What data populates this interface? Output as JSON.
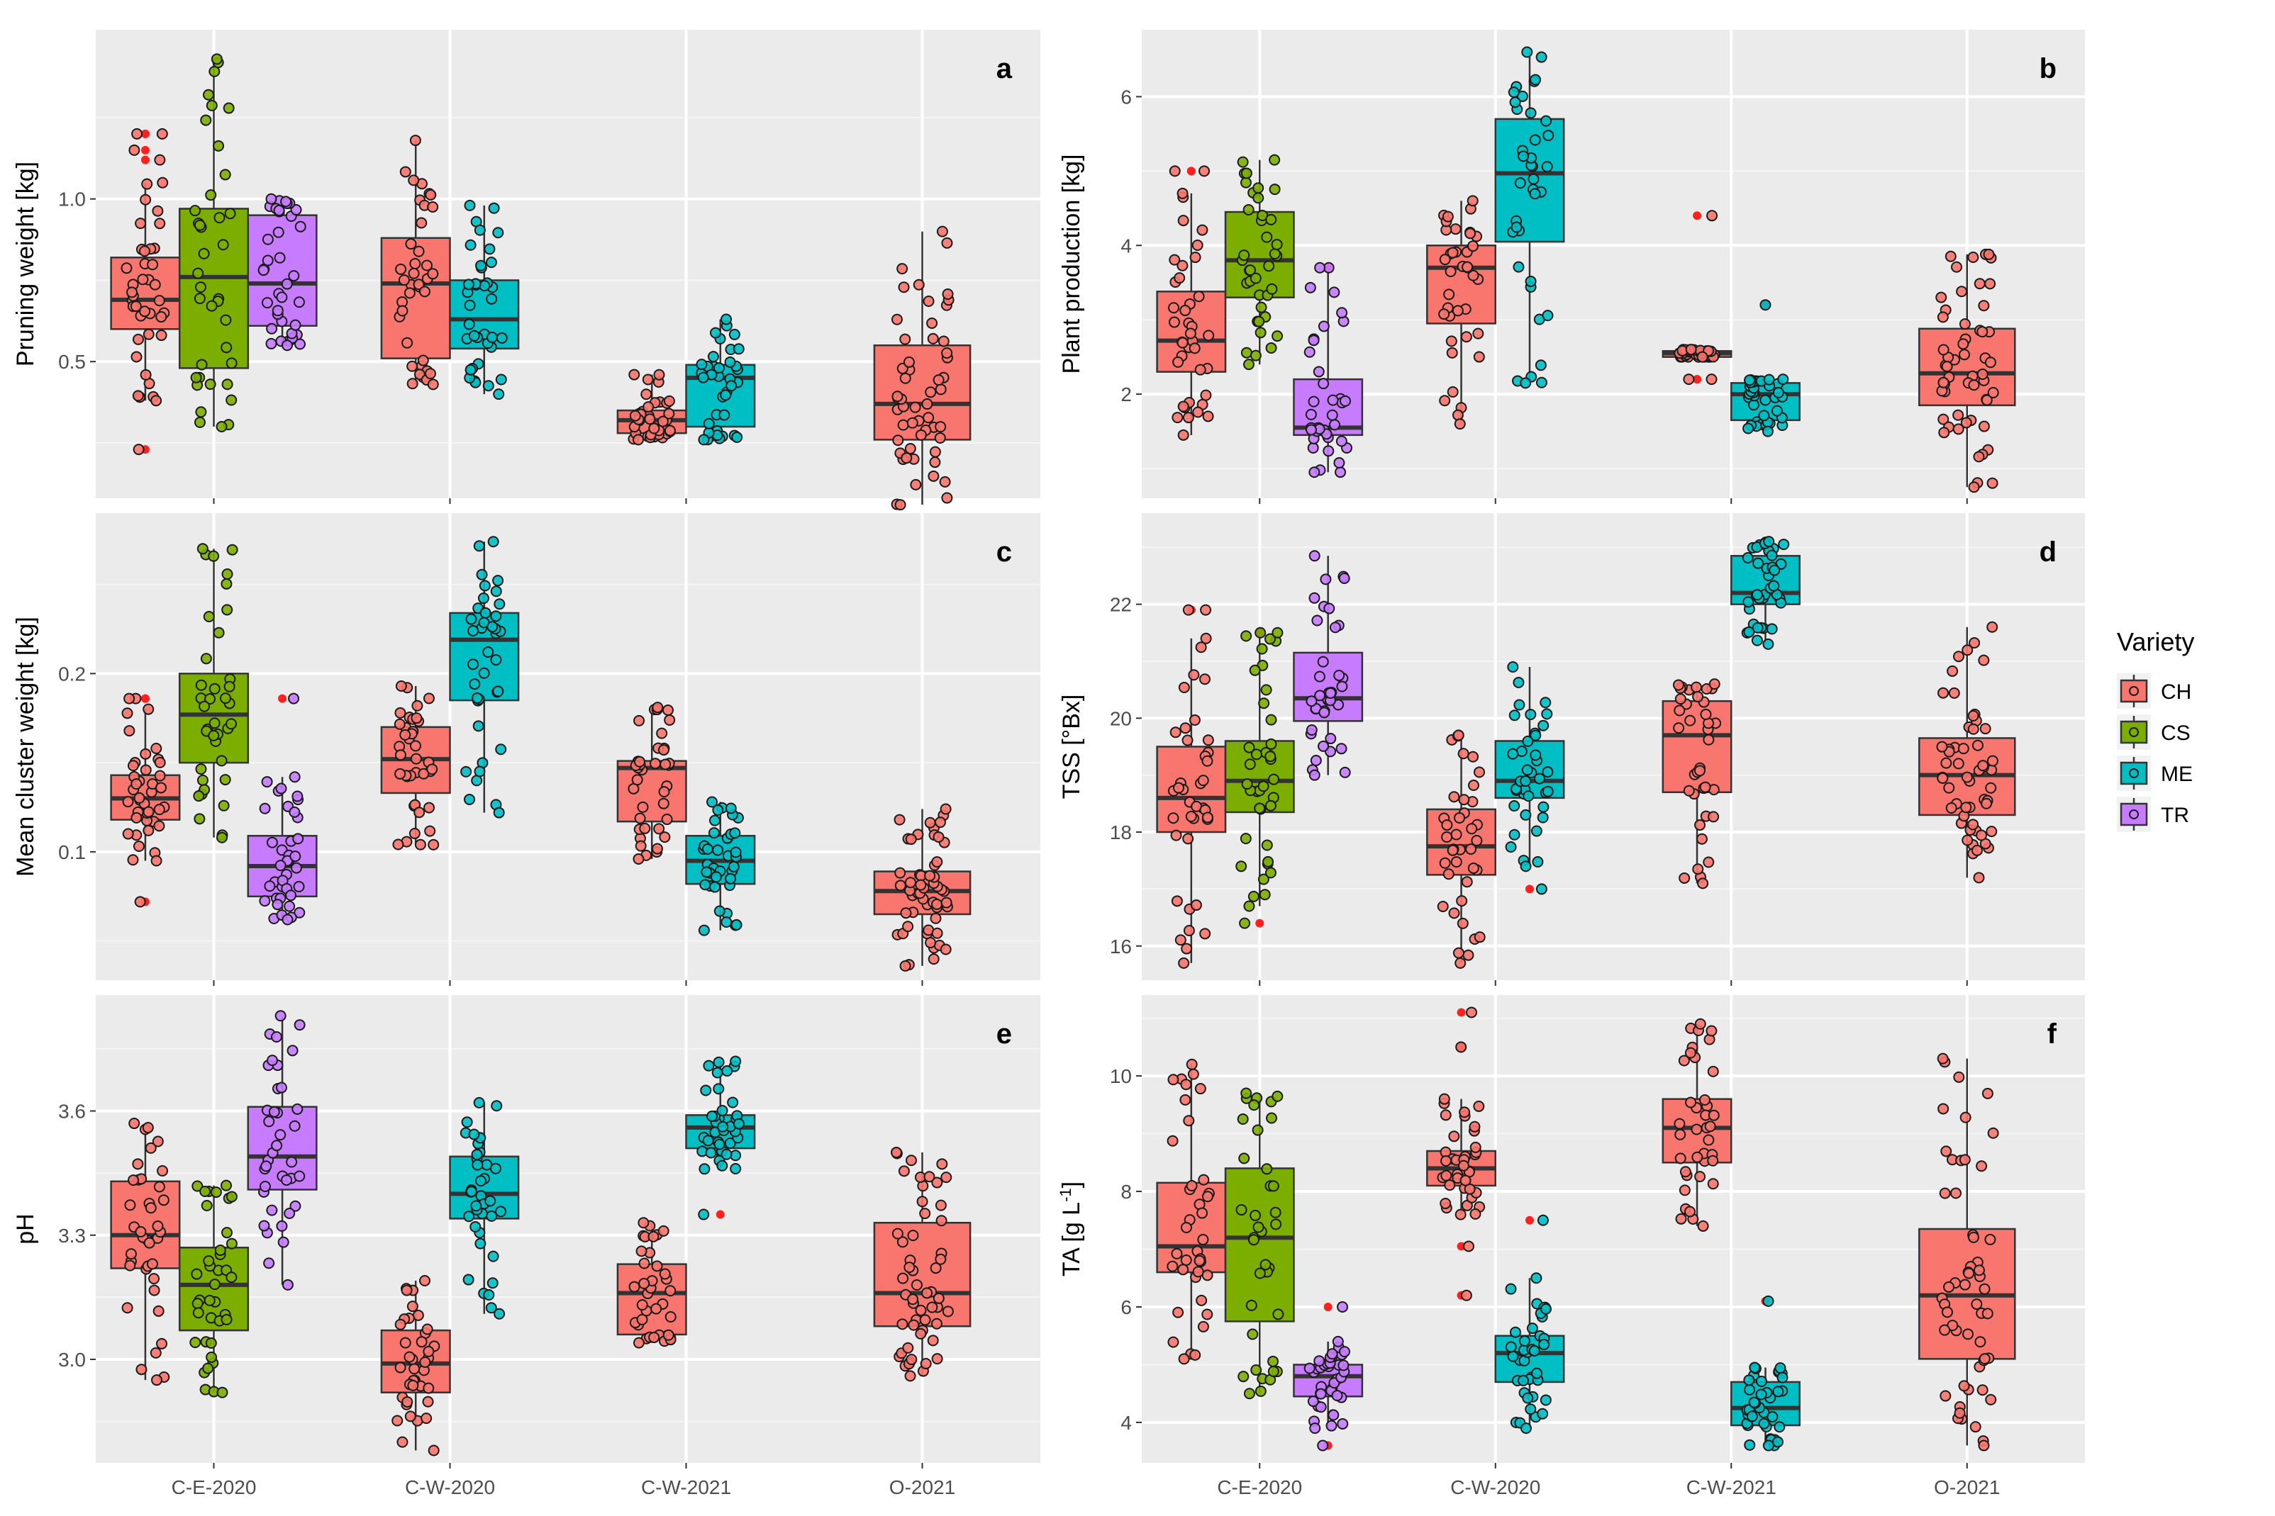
{
  "figure": {
    "x_categories": [
      "C-E-2020",
      "C-W-2020",
      "C-W-2021",
      "O-2021"
    ],
    "varieties": [
      "CH",
      "CS",
      "ME",
      "TR"
    ],
    "colors": {
      "CH": "#F8766D",
      "CS": "#7CAE00",
      "ME": "#00BFC4",
      "TR": "#C77CFF"
    },
    "legend": {
      "title": "Variety",
      "items": [
        "CH",
        "CS",
        "ME",
        "TR"
      ]
    }
  },
  "chart_data": [
    {
      "type": "box",
      "letter": "a",
      "ylabel_parts": [
        {
          "t": "Pruning weight [kg]"
        }
      ],
      "ylim": [
        0.08,
        1.52
      ],
      "yticks": [
        0.5,
        1.0
      ],
      "ytick_labels": [
        "0.5",
        "1.0"
      ],
      "groups": [
        {
          "site": "C-E-2020",
          "variety": "CH",
          "min": 0.38,
          "q1": 0.6,
          "median": 0.69,
          "q3": 0.82,
          "max": 1.05,
          "outliers": [
            0.23,
            1.12,
            1.15,
            1.2,
            1.2
          ]
        },
        {
          "site": "C-E-2020",
          "variety": "CS",
          "min": 0.3,
          "q1": 0.48,
          "median": 0.76,
          "q3": 0.97,
          "max": 1.43,
          "outliers": []
        },
        {
          "site": "C-E-2020",
          "variety": "TR",
          "min": 0.55,
          "q1": 0.61,
          "median": 0.74,
          "q3": 0.95,
          "max": 1.0,
          "outliers": []
        },
        {
          "site": "C-W-2020",
          "variety": "CH",
          "min": 0.43,
          "q1": 0.51,
          "median": 0.74,
          "q3": 0.88,
          "max": 1.18,
          "outliers": []
        },
        {
          "site": "C-W-2020",
          "variety": "ME",
          "min": 0.4,
          "q1": 0.54,
          "median": 0.63,
          "q3": 0.75,
          "max": 0.98,
          "outliers": []
        },
        {
          "site": "C-W-2021",
          "variety": "CH",
          "min": 0.26,
          "q1": 0.28,
          "median": 0.32,
          "q3": 0.35,
          "max": 0.46,
          "outliers": []
        },
        {
          "site": "C-W-2021",
          "variety": "ME",
          "min": 0.26,
          "q1": 0.3,
          "median": 0.45,
          "q3": 0.49,
          "max": 0.63,
          "outliers": []
        },
        {
          "site": "O-2021",
          "variety": "CH",
          "min": 0.06,
          "q1": 0.26,
          "median": 0.37,
          "q3": 0.55,
          "max": 0.9,
          "outliers": []
        }
      ]
    },
    {
      "type": "box",
      "letter": "b",
      "ylabel_parts": [
        {
          "t": "Plant production [kg]"
        }
      ],
      "ylim": [
        0.6,
        6.9
      ],
      "yticks": [
        2,
        4,
        6
      ],
      "ytick_labels": [
        "2",
        "4",
        "6"
      ],
      "groups": [
        {
          "site": "C-E-2020",
          "variety": "CH",
          "min": 1.45,
          "q1": 2.3,
          "median": 2.72,
          "q3": 3.38,
          "max": 4.7,
          "outliers": [
            5.0,
            5.0
          ]
        },
        {
          "site": "C-E-2020",
          "variety": "CS",
          "min": 2.4,
          "q1": 3.3,
          "median": 3.8,
          "q3": 4.45,
          "max": 5.15,
          "outliers": []
        },
        {
          "site": "C-E-2020",
          "variety": "TR",
          "min": 0.95,
          "q1": 1.45,
          "median": 1.55,
          "q3": 2.2,
          "max": 3.7,
          "outliers": [
            3.7
          ]
        },
        {
          "site": "C-W-2020",
          "variety": "CH",
          "min": 1.6,
          "q1": 2.95,
          "median": 3.7,
          "q3": 4.0,
          "max": 4.6,
          "outliers": []
        },
        {
          "site": "C-W-2020",
          "variety": "ME",
          "min": 2.15,
          "q1": 4.05,
          "median": 4.97,
          "q3": 5.7,
          "max": 6.6,
          "outliers": []
        },
        {
          "site": "C-W-2021",
          "variety": "CH",
          "min": 2.5,
          "q1": 2.5,
          "median": 2.55,
          "q3": 2.58,
          "max": 2.6,
          "outliers": [
            2.2,
            2.2,
            4.4
          ]
        },
        {
          "site": "C-W-2021",
          "variety": "ME",
          "min": 1.5,
          "q1": 1.65,
          "median": 2.0,
          "q3": 2.15,
          "max": 2.2,
          "outliers": [
            3.2
          ]
        },
        {
          "site": "O-2021",
          "variety": "CH",
          "min": 0.75,
          "q1": 1.85,
          "median": 2.28,
          "q3": 2.88,
          "max": 3.88,
          "outliers": []
        }
      ]
    },
    {
      "type": "box",
      "letter": "c",
      "ylabel_parts": [
        {
          "t": "Mean cluster weight [kg]"
        }
      ],
      "ylim": [
        0.028,
        0.29
      ],
      "yticks": [
        0.1,
        0.2
      ],
      "ytick_labels": [
        "0.1",
        "0.2"
      ],
      "groups": [
        {
          "site": "C-E-2020",
          "variety": "CH",
          "min": 0.095,
          "q1": 0.118,
          "median": 0.13,
          "q3": 0.143,
          "max": 0.18,
          "outliers": [
            0.072,
            0.186,
            0.186
          ]
        },
        {
          "site": "C-E-2020",
          "variety": "CS",
          "min": 0.108,
          "q1": 0.15,
          "median": 0.177,
          "q3": 0.2,
          "max": 0.27,
          "outliers": []
        },
        {
          "site": "C-E-2020",
          "variety": "TR",
          "min": 0.062,
          "q1": 0.075,
          "median": 0.092,
          "q3": 0.109,
          "max": 0.142,
          "outliers": [
            0.186
          ]
        },
        {
          "site": "C-W-2020",
          "variety": "CH",
          "min": 0.104,
          "q1": 0.133,
          "median": 0.152,
          "q3": 0.17,
          "max": 0.193,
          "outliers": []
        },
        {
          "site": "C-W-2020",
          "variety": "ME",
          "min": 0.122,
          "q1": 0.185,
          "median": 0.219,
          "q3": 0.234,
          "max": 0.274,
          "outliers": []
        },
        {
          "site": "C-W-2021",
          "variety": "CH",
          "min": 0.096,
          "q1": 0.117,
          "median": 0.147,
          "q3": 0.151,
          "max": 0.181,
          "outliers": []
        },
        {
          "site": "C-W-2021",
          "variety": "ME",
          "min": 0.056,
          "q1": 0.082,
          "median": 0.095,
          "q3": 0.109,
          "max": 0.128,
          "outliers": []
        },
        {
          "site": "O-2021",
          "variety": "CH",
          "min": 0.036,
          "q1": 0.065,
          "median": 0.078,
          "q3": 0.089,
          "max": 0.124,
          "outliers": []
        }
      ]
    },
    {
      "type": "box",
      "letter": "d",
      "ylabel_parts": [
        {
          "t": "TSS [°Bx]"
        }
      ],
      "ylim": [
        15.4,
        23.6
      ],
      "yticks": [
        16,
        18,
        20,
        22
      ],
      "ytick_labels": [
        "16",
        "18",
        "20",
        "22"
      ],
      "groups": [
        {
          "site": "C-E-2020",
          "variety": "CH",
          "min": 15.7,
          "q1": 18.0,
          "median": 18.6,
          "q3": 19.5,
          "max": 21.4,
          "outliers": [
            21.9,
            21.9
          ]
        },
        {
          "site": "C-E-2020",
          "variety": "CS",
          "min": 16.7,
          "q1": 18.35,
          "median": 18.9,
          "q3": 19.6,
          "max": 21.5,
          "outliers": [
            16.4,
            21.5
          ]
        },
        {
          "site": "C-E-2020",
          "variety": "TR",
          "min": 19.0,
          "q1": 19.95,
          "median": 20.35,
          "q3": 21.15,
          "max": 22.85,
          "outliers": []
        },
        {
          "site": "C-W-2020",
          "variety": "CH",
          "min": 15.7,
          "q1": 17.25,
          "median": 17.75,
          "q3": 18.4,
          "max": 19.7,
          "outliers": []
        },
        {
          "site": "C-W-2020",
          "variety": "ME",
          "min": 17.4,
          "q1": 18.6,
          "median": 18.9,
          "q3": 19.6,
          "max": 20.9,
          "outliers": [
            17.0
          ]
        },
        {
          "site": "C-W-2021",
          "variety": "CH",
          "min": 17.1,
          "q1": 18.7,
          "median": 19.7,
          "q3": 20.3,
          "max": 20.6,
          "outliers": []
        },
        {
          "site": "C-W-2021",
          "variety": "ME",
          "min": 21.3,
          "q1": 22.0,
          "median": 22.2,
          "q3": 22.85,
          "max": 23.1,
          "outliers": []
        },
        {
          "site": "O-2021",
          "variety": "CH",
          "min": 17.2,
          "q1": 18.3,
          "median": 19.0,
          "q3": 19.65,
          "max": 21.6,
          "outliers": []
        }
      ]
    },
    {
      "type": "box",
      "letter": "e",
      "ylabel_parts": [
        {
          "t": "pH"
        }
      ],
      "ylim": [
        2.75,
        3.88
      ],
      "yticks": [
        3.0,
        3.3,
        3.6
      ],
      "ytick_labels": [
        "3.0",
        "3.3",
        "3.6"
      ],
      "groups": [
        {
          "site": "C-E-2020",
          "variety": "CH",
          "min": 2.95,
          "q1": 3.22,
          "median": 3.3,
          "q3": 3.43,
          "max": 3.57,
          "outliers": []
        },
        {
          "site": "C-E-2020",
          "variety": "CS",
          "min": 2.92,
          "q1": 3.07,
          "median": 3.18,
          "q3": 3.27,
          "max": 3.42,
          "outliers": []
        },
        {
          "site": "C-E-2020",
          "variety": "TR",
          "min": 3.18,
          "q1": 3.41,
          "median": 3.49,
          "q3": 3.61,
          "max": 3.83,
          "outliers": []
        },
        {
          "site": "C-W-2020",
          "variety": "CH",
          "min": 2.78,
          "q1": 2.92,
          "median": 2.99,
          "q3": 3.07,
          "max": 3.19,
          "outliers": []
        },
        {
          "site": "C-W-2020",
          "variety": "ME",
          "min": 3.11,
          "q1": 3.34,
          "median": 3.4,
          "q3": 3.49,
          "max": 3.62,
          "outliers": []
        },
        {
          "site": "C-W-2021",
          "variety": "CH",
          "min": 3.04,
          "q1": 3.06,
          "median": 3.16,
          "q3": 3.23,
          "max": 3.33,
          "outliers": []
        },
        {
          "site": "C-W-2021",
          "variety": "ME",
          "min": 3.46,
          "q1": 3.51,
          "median": 3.56,
          "q3": 3.59,
          "max": 3.72,
          "outliers": [
            3.35
          ]
        },
        {
          "site": "O-2021",
          "variety": "CH",
          "min": 2.96,
          "q1": 3.08,
          "median": 3.16,
          "q3": 3.33,
          "max": 3.5,
          "outliers": []
        }
      ]
    },
    {
      "type": "box",
      "letter": "f",
      "ylabel_parts": [
        {
          "t": "TA [g L"
        },
        {
          "t": "-1",
          "sup": true
        },
        {
          "t": "]"
        }
      ],
      "ylim": [
        3.3,
        11.4
      ],
      "yticks": [
        4,
        6,
        8,
        10
      ],
      "ytick_labels": [
        "4",
        "6",
        "8",
        "10"
      ],
      "groups": [
        {
          "site": "C-E-2020",
          "variety": "CH",
          "min": 5.1,
          "q1": 6.6,
          "median": 7.05,
          "q3": 8.15,
          "max": 10.2,
          "outliers": []
        },
        {
          "site": "C-E-2020",
          "variety": "CS",
          "min": 4.5,
          "q1": 5.75,
          "median": 7.2,
          "q3": 8.4,
          "max": 9.7,
          "outliers": []
        },
        {
          "site": "C-E-2020",
          "variety": "TR",
          "min": 3.9,
          "q1": 4.45,
          "median": 4.8,
          "q3": 5.0,
          "max": 5.4,
          "outliers": [
            3.6,
            6.0
          ]
        },
        {
          "site": "C-W-2020",
          "variety": "CH",
          "min": 7.6,
          "q1": 8.1,
          "median": 8.4,
          "q3": 8.7,
          "max": 9.6,
          "outliers": [
            6.2,
            7.05,
            10.5,
            11.1
          ]
        },
        {
          "site": "C-W-2020",
          "variety": "ME",
          "min": 3.9,
          "q1": 4.7,
          "median": 5.2,
          "q3": 5.5,
          "max": 6.5,
          "outliers": [
            7.5
          ]
        },
        {
          "site": "C-W-2021",
          "variety": "CH",
          "min": 7.4,
          "q1": 8.5,
          "median": 9.1,
          "q3": 9.6,
          "max": 10.9,
          "outliers": []
        },
        {
          "site": "C-W-2021",
          "variety": "ME",
          "min": 3.6,
          "q1": 3.95,
          "median": 4.25,
          "q3": 4.7,
          "max": 4.95,
          "outliers": [
            6.1
          ]
        },
        {
          "site": "O-2021",
          "variety": "CH",
          "min": 3.6,
          "q1": 5.1,
          "median": 6.2,
          "q3": 7.35,
          "max": 10.3,
          "outliers": []
        }
      ]
    }
  ]
}
